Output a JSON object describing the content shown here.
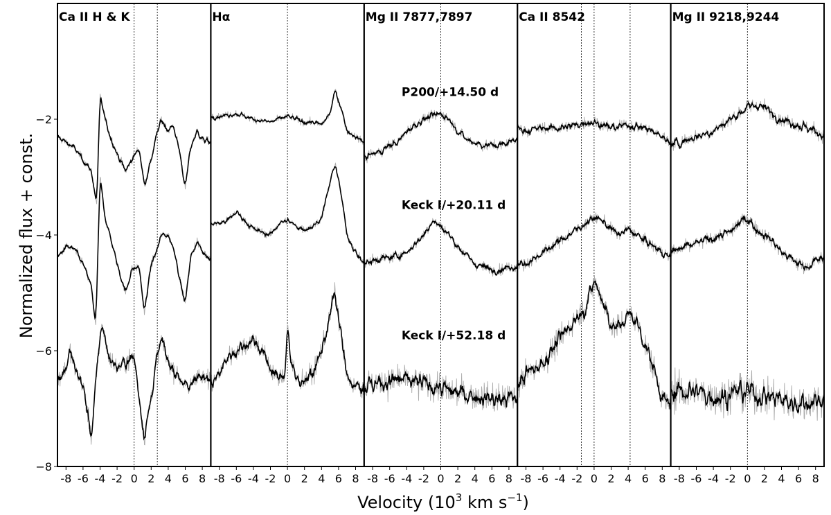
{
  "chart_data": {
    "type": "line",
    "xlabel": "Velocity (10$^3$ km s$^{-1}$)",
    "xlabel_parts": [
      "Velocity (10",
      "3",
      " km s",
      "−1",
      ")"
    ],
    "ylabel": "Normalized flux + const.",
    "ylim": [
      -8,
      0
    ],
    "yticks": [
      -8,
      -6,
      -4,
      -2
    ],
    "ytick_labels": [
      "−8",
      "−6",
      "−4",
      "−2"
    ],
    "xlim": [
      -9,
      9
    ],
    "xticks": [
      -8,
      -6,
      -4,
      -2,
      0,
      2,
      4,
      6,
      8
    ],
    "xtick_labels": [
      "-8",
      "-6",
      "-4",
      "-2",
      "0",
      "2",
      "4",
      "6",
      "8"
    ],
    "colors": {
      "smoothed": "#000000",
      "raw": "#aaaaaa",
      "frame": "#000000"
    },
    "epochs": [
      {
        "label": "P200/+14.50 d",
        "offset": -2
      },
      {
        "label": "Keck I/+20.11 d",
        "offset": -4.2
      },
      {
        "label": "Keck I/+52.18 d",
        "offset": -6.5
      }
    ],
    "panels": [
      {
        "title": "Ca II H & K",
        "rest_markers": [
          0,
          2.72
        ],
        "series": [
          {
            "name": "P200/+14.50 d",
            "noise": 0.07,
            "x": [
              -9,
              -8,
              -7,
              -6,
              -5,
              -4.4,
              -4,
              -3.4,
              -2.8,
              -2,
              -1,
              -0.3,
              0.6,
              1.2,
              2,
              2.6,
              3.2,
              4,
              4.6,
              5.4,
              6,
              6.6,
              7.4,
              8,
              9
            ],
            "y": [
              -2.3,
              -2.4,
              -2.5,
              -2.7,
              -2.9,
              -3.5,
              -1.6,
              -2.0,
              -2.3,
              -2.6,
              -2.9,
              -2.7,
              -2.5,
              -3.15,
              -2.7,
              -2.3,
              -2.0,
              -2.2,
              -2.1,
              -2.6,
              -3.2,
              -2.5,
              -2.2,
              -2.35,
              -2.4
            ]
          },
          {
            "name": "Keck I/+20.11 d",
            "noise": 0.07,
            "x": [
              -9,
              -8,
              -7,
              -6,
              -5,
              -4.5,
              -4,
              -3.4,
              -2.5,
              -2,
              -1,
              -0.3,
              0.6,
              1.2,
              2,
              2.6,
              3.2,
              4,
              4.8,
              5.4,
              6,
              6.6,
              7.4,
              8,
              9
            ],
            "y": [
              -4.4,
              -4.2,
              -4.25,
              -4.5,
              -4.9,
              -5.6,
              -3.0,
              -3.7,
              -4.2,
              -4.5,
              -5.0,
              -4.6,
              -4.55,
              -5.35,
              -4.5,
              -4.3,
              -4.0,
              -4.0,
              -4.3,
              -4.8,
              -5.2,
              -4.4,
              -4.1,
              -4.3,
              -4.4
            ]
          },
          {
            "name": "Keck I/+52.18 d",
            "noise": 0.16,
            "x": [
              -9,
              -8,
              -7.5,
              -7,
              -6,
              -5,
              -4.3,
              -3.8,
              -3,
              -2,
              -1,
              0,
              0.6,
              1.2,
              2,
              2.6,
              3.2,
              4,
              5,
              5.6,
              6.4,
              7.2,
              8,
              9
            ],
            "y": [
              -6.5,
              -6.3,
              -6.0,
              -6.3,
              -6.6,
              -7.5,
              -6.2,
              -5.5,
              -6.1,
              -6.3,
              -6.2,
              -6.1,
              -6.8,
              -7.5,
              -6.8,
              -6.2,
              -5.8,
              -6.2,
              -6.4,
              -6.5,
              -6.7,
              -6.4,
              -6.5,
              -6.5
            ]
          }
        ]
      },
      {
        "title": "Hα",
        "rest_markers": [
          0
        ],
        "series": [
          {
            "name": "P200/+14.50 d",
            "noise": 0.06,
            "x": [
              -9,
              -8,
              -6,
              -4,
              -2,
              -1,
              0,
              1,
              2,
              3,
              4,
              5,
              5.6,
              6.3,
              7,
              8,
              9
            ],
            "y": [
              -1.95,
              -1.95,
              -1.9,
              -2.0,
              -2.05,
              -2.0,
              -1.95,
              -2.0,
              -2.05,
              -2.05,
              -2.1,
              -1.9,
              -1.5,
              -1.8,
              -2.2,
              -2.3,
              -2.4
            ]
          },
          {
            "name": "Keck I/+20.11 d",
            "noise": 0.07,
            "x": [
              -9,
              -8,
              -7,
              -6,
              -5,
              -4,
              -3,
              -2,
              -1,
              0,
              1,
              2,
              3,
              4,
              5,
              5.6,
              6.3,
              7,
              8,
              9
            ],
            "y": [
              -3.8,
              -3.8,
              -3.75,
              -3.6,
              -3.75,
              -3.9,
              -3.95,
              -4.0,
              -3.8,
              -3.75,
              -3.85,
              -3.9,
              -3.85,
              -3.7,
              -3.1,
              -2.75,
              -3.3,
              -4.0,
              -4.3,
              -4.5
            ]
          },
          {
            "name": "Keck I/+52.18 d",
            "noise": 0.18,
            "x": [
              -9,
              -8,
              -7,
              -6,
              -5,
              -4,
              -3,
              -2,
              -1,
              -0.3,
              0,
              0.4,
              1,
              2,
              3,
              4,
              5,
              5.5,
              6.2,
              7,
              8,
              9
            ],
            "y": [
              -6.6,
              -6.4,
              -6.1,
              -6.0,
              -5.9,
              -5.8,
              -6.0,
              -6.3,
              -6.5,
              -6.4,
              -5.5,
              -6.2,
              -6.5,
              -6.5,
              -6.4,
              -6.0,
              -5.4,
              -5.0,
              -5.6,
              -6.5,
              -6.6,
              -6.7
            ]
          }
        ]
      },
      {
        "title": "Mg II 7877,7897",
        "rest_markers": [
          0
        ],
        "series": [
          {
            "name": "P200/+14.50 d",
            "noise": 0.09,
            "x": [
              -9,
              -8,
              -7,
              -6,
              -5,
              -4,
              -3,
              -2,
              -1,
              0,
              1,
              2,
              3,
              4,
              5,
              6,
              7,
              8,
              9
            ],
            "y": [
              -2.65,
              -2.6,
              -2.55,
              -2.45,
              -2.4,
              -2.2,
              -2.1,
              -2.0,
              -1.95,
              -1.9,
              -2.0,
              -2.2,
              -2.35,
              -2.4,
              -2.45,
              -2.45,
              -2.45,
              -2.4,
              -2.3
            ]
          },
          {
            "name": "Keck I/+20.11 d",
            "noise": 0.09,
            "x": [
              -9,
              -8,
              -7,
              -6,
              -5,
              -4,
              -3,
              -2,
              -1,
              0,
              1,
              2,
              3,
              4,
              5,
              6,
              7,
              8,
              9
            ],
            "y": [
              -4.5,
              -4.45,
              -4.4,
              -4.4,
              -4.35,
              -4.3,
              -4.15,
              -4.0,
              -3.75,
              -3.85,
              -4.0,
              -4.2,
              -4.35,
              -4.5,
              -4.55,
              -4.6,
              -4.6,
              -4.55,
              -4.55
            ]
          },
          {
            "name": "Keck I/+52.18 d",
            "noise": 0.25,
            "x": [
              -9,
              -7,
              -5,
              -3,
              -1,
              0,
              1,
              3,
              5,
              7,
              9
            ],
            "y": [
              -6.6,
              -6.55,
              -6.5,
              -6.55,
              -6.6,
              -6.65,
              -6.7,
              -6.75,
              -6.8,
              -6.85,
              -6.8
            ]
          }
        ]
      },
      {
        "title": "Ca II 8542",
        "rest_markers": [
          -1.5,
          0,
          4.23
        ],
        "series": [
          {
            "name": "P200/+14.50 d",
            "noise": 0.1,
            "x": [
              -9,
              -8,
              -6,
              -4,
              -2,
              -1,
              0,
              1,
              2,
              4,
              6,
              8,
              9
            ],
            "y": [
              -2.15,
              -2.2,
              -2.15,
              -2.15,
              -2.1,
              -2.05,
              -2.05,
              -2.1,
              -2.15,
              -2.1,
              -2.15,
              -2.3,
              -2.4
            ]
          },
          {
            "name": "Keck I/+20.11 d",
            "noise": 0.1,
            "x": [
              -9,
              -8,
              -7,
              -6,
              -5,
              -4,
              -3,
              -2,
              -1,
              0,
              1,
              2,
              3,
              4,
              5,
              6,
              7,
              8,
              9
            ],
            "y": [
              -4.5,
              -4.5,
              -4.4,
              -4.3,
              -4.2,
              -4.1,
              -4.0,
              -3.9,
              -3.8,
              -3.7,
              -3.75,
              -3.9,
              -4.0,
              -3.9,
              -4.0,
              -4.1,
              -4.2,
              -4.3,
              -4.4
            ]
          },
          {
            "name": "Keck I/+52.18 d",
            "noise": 0.22,
            "x": [
              -9,
              -8,
              -7,
              -6,
              -5,
              -4,
              -3,
              -2,
              -1.3,
              -0.6,
              0,
              0.7,
              1.4,
              2.2,
              3,
              3.8,
              4.5,
              5.3,
              6,
              7,
              8,
              9
            ],
            "y": [
              -6.6,
              -6.4,
              -6.3,
              -6.2,
              -6.0,
              -5.8,
              -5.6,
              -5.4,
              -5.3,
              -5.1,
              -4.8,
              -5.0,
              -5.3,
              -5.6,
              -5.6,
              -5.4,
              -5.4,
              -5.6,
              -5.9,
              -6.3,
              -6.8,
              -7.0
            ]
          }
        ]
      },
      {
        "title": "Mg II 9218,9244",
        "rest_markers": [
          0
        ],
        "series": [
          {
            "name": "P200/+14.50 d",
            "noise": 0.12,
            "x": [
              -9,
              -8,
              -6,
              -4,
              -2,
              -1,
              0,
              1,
              2,
              3,
              4,
              6,
              7,
              8,
              9
            ],
            "y": [
              -2.45,
              -2.4,
              -2.3,
              -2.2,
              -2.0,
              -1.9,
              -1.8,
              -1.75,
              -1.8,
              -1.9,
              -2.0,
              -2.1,
              -2.15,
              -2.2,
              -2.3
            ]
          },
          {
            "name": "Keck I/+20.11 d",
            "noise": 0.12,
            "x": [
              -9,
              -8,
              -7,
              -6,
              -5,
              -4,
              -3,
              -2,
              -1,
              0,
              1,
              2,
              3,
              4,
              5,
              6,
              7,
              8,
              9
            ],
            "y": [
              -4.3,
              -4.25,
              -4.2,
              -4.15,
              -4.1,
              -4.05,
              -4.0,
              -3.95,
              -3.8,
              -3.7,
              -3.9,
              -4.0,
              -4.1,
              -4.3,
              -4.4,
              -4.5,
              -4.55,
              -4.45,
              -4.4
            ]
          },
          {
            "name": "Keck I/+52.18 d",
            "noise": 0.32,
            "x": [
              -9,
              -7,
              -5,
              -3,
              -1,
              0,
              1,
              3,
              5,
              7,
              9
            ],
            "y": [
              -6.7,
              -6.7,
              -6.75,
              -6.8,
              -6.7,
              -6.7,
              -6.75,
              -6.8,
              -6.9,
              -6.9,
              -6.8
            ]
          }
        ]
      }
    ]
  }
}
